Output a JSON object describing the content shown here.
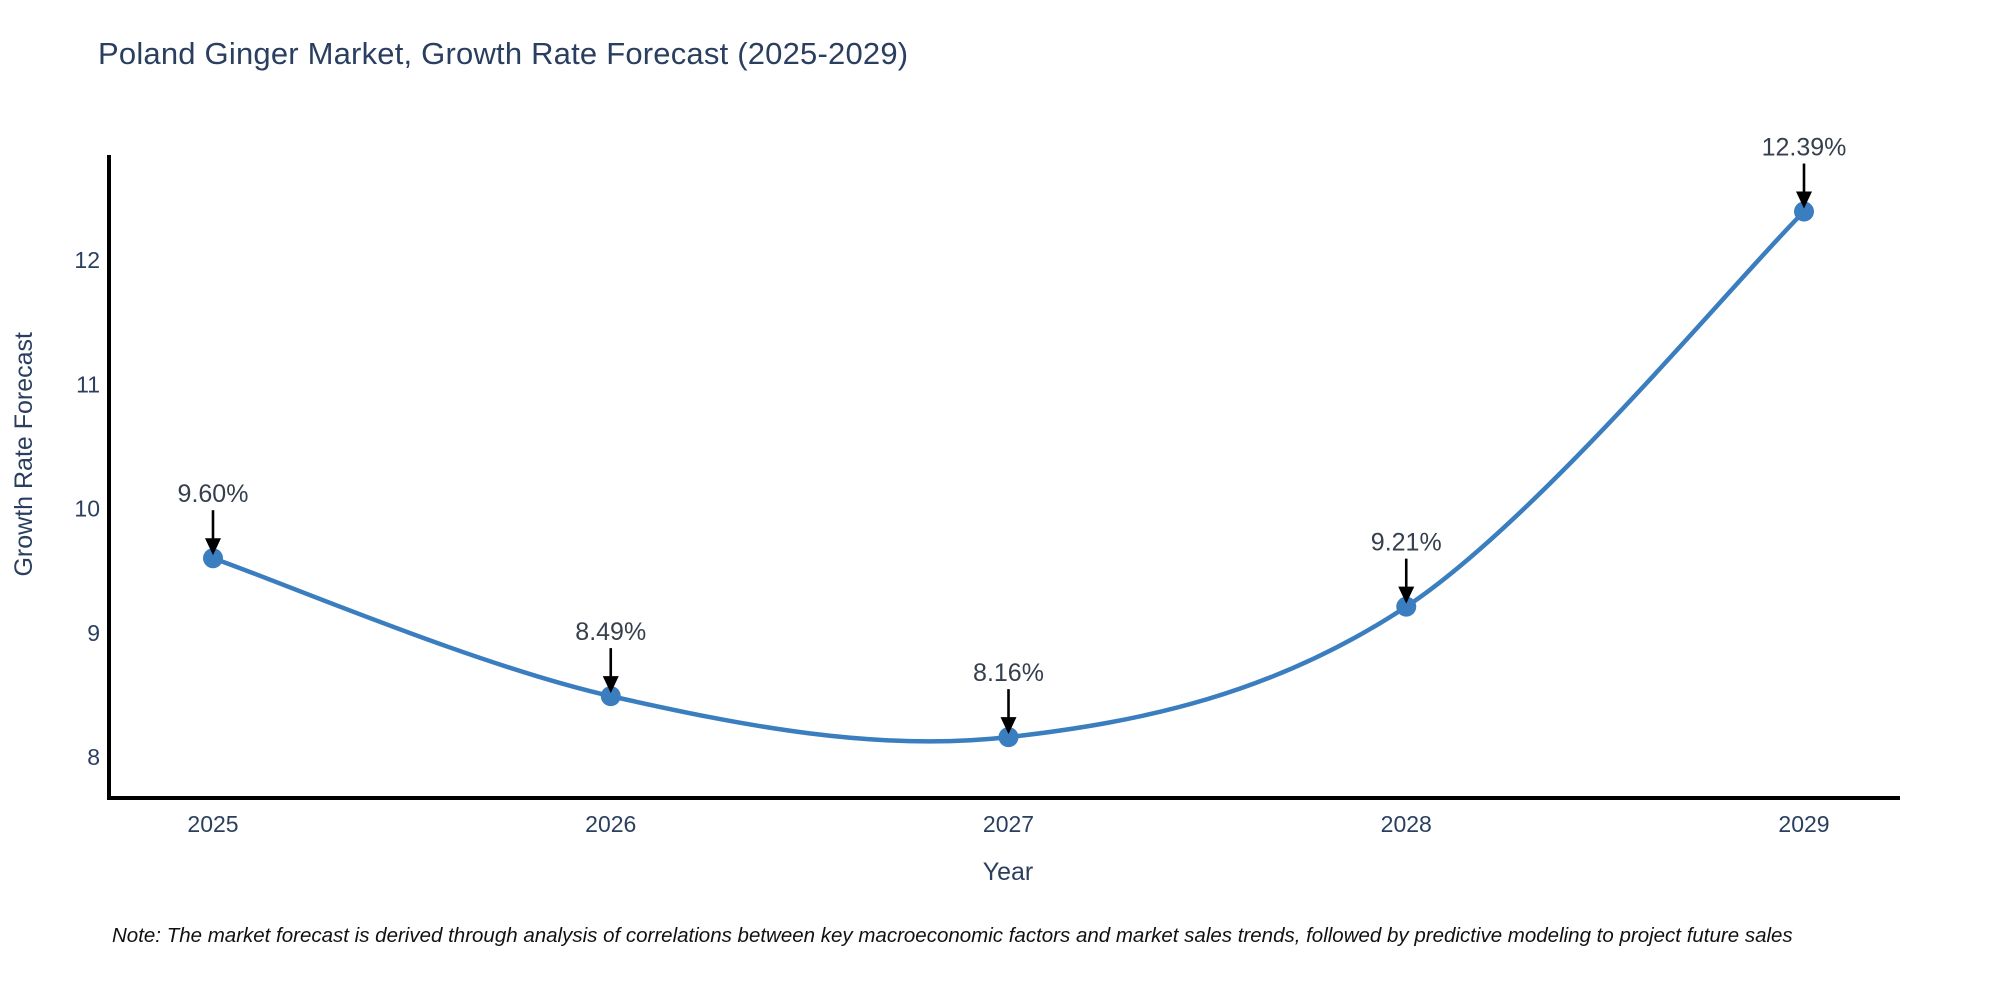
{
  "title": "Poland Ginger Market, Growth Rate Forecast (2025-2029)",
  "note": "Note: The market forecast is derived through analysis of correlations between key macroeconomic factors and market sales trends, followed by predictive modeling to project future sales",
  "chart_data": {
    "type": "line",
    "title": "Poland Ginger Market, Growth Rate Forecast (2025-2029)",
    "xlabel": "Year",
    "ylabel": "Growth Rate Forecast",
    "x": [
      2025,
      2026,
      2027,
      2028,
      2029
    ],
    "series": [
      {
        "name": "Growth Rate Forecast",
        "values": [
          9.6,
          8.49,
          8.16,
          9.21,
          12.39
        ]
      }
    ],
    "point_labels": [
      "9.60%",
      "8.49%",
      "8.16%",
      "9.21%",
      "12.39%"
    ],
    "yticks": [
      8,
      9,
      10,
      11,
      12
    ],
    "ylim": [
      7.65,
      12.85
    ],
    "line_shape": "spline",
    "grid": false,
    "legend_position": "none",
    "annotations_have_arrows": true,
    "colors": {
      "line": "#3a7ebf",
      "marker": "#3a7ebf",
      "axis_line": "#000000",
      "axis_text": "#2a3f5f",
      "annotation_text": "#353f4d",
      "arrow": "#000000",
      "title": "#2a3f5f",
      "background": "#ffffff"
    }
  }
}
